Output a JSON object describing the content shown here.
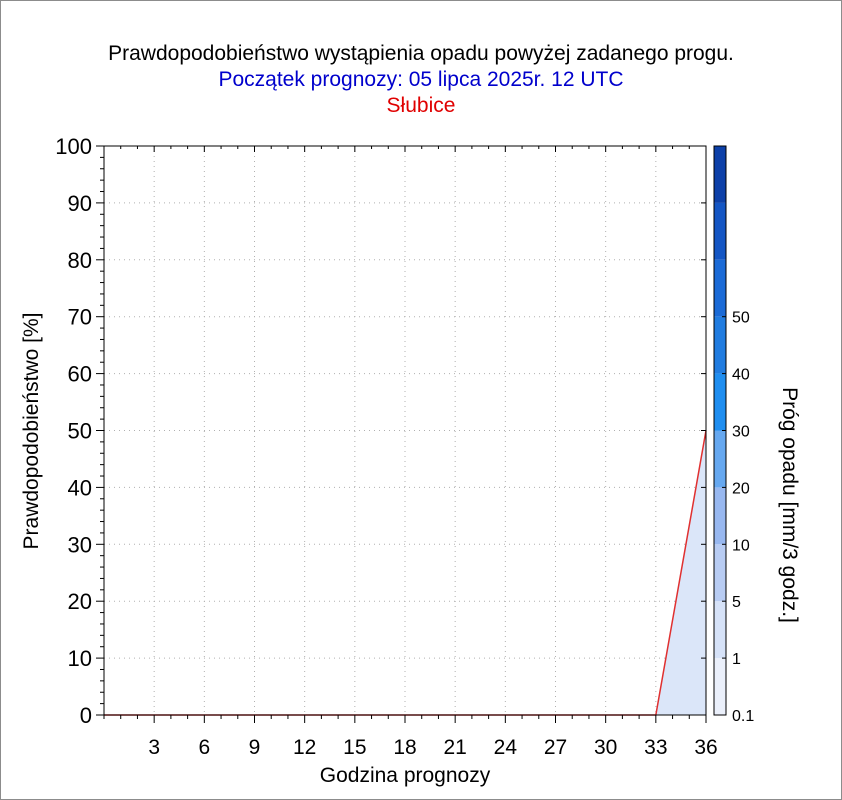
{
  "header": {
    "title": "Prawdopodobieństwo wystąpienia opadu powyżej zadanego progu.",
    "subtitle": "Początek prognozy: 05 lipca 2025r. 12 UTC",
    "location": "Słubice"
  },
  "colors": {
    "title": "#000000",
    "subtitle": "#0000cc",
    "location": "#e00000",
    "series_line": "#e03030",
    "area_fill": "#dbe6f9",
    "colorbar": [
      "#ebf0fb",
      "#d6e2f8",
      "#b8ccf3",
      "#98b8f0",
      "#66a8f0",
      "#1f8ef0",
      "#207ce0",
      "#1a6ad6",
      "#1456c4",
      "#0d40a8"
    ]
  },
  "chart_data": {
    "type": "area",
    "xlabel": "Godzina prognozy",
    "ylabel": "Prawdopodobieństwo [%]",
    "xlim": [
      0,
      36
    ],
    "ylim": [
      0,
      100
    ],
    "x_ticks": [
      3,
      6,
      9,
      12,
      15,
      18,
      21,
      24,
      27,
      30,
      33,
      36
    ],
    "y_ticks": [
      0,
      10,
      20,
      30,
      40,
      50,
      60,
      70,
      80,
      90,
      100
    ],
    "grid": true,
    "series": [
      {
        "threshold": "0.1",
        "x": [
          0,
          3,
          6,
          9,
          12,
          15,
          18,
          21,
          24,
          27,
          30,
          33,
          36
        ],
        "values": [
          0,
          0,
          0,
          0,
          0,
          0,
          0,
          0,
          0,
          0,
          0,
          0,
          50
        ]
      }
    ],
    "colorbar": {
      "label": "Próg opadu [mm/3 godz.]",
      "levels": [
        "0.1",
        "1",
        "5",
        "10",
        "20",
        "30",
        "40",
        "50"
      ]
    }
  }
}
